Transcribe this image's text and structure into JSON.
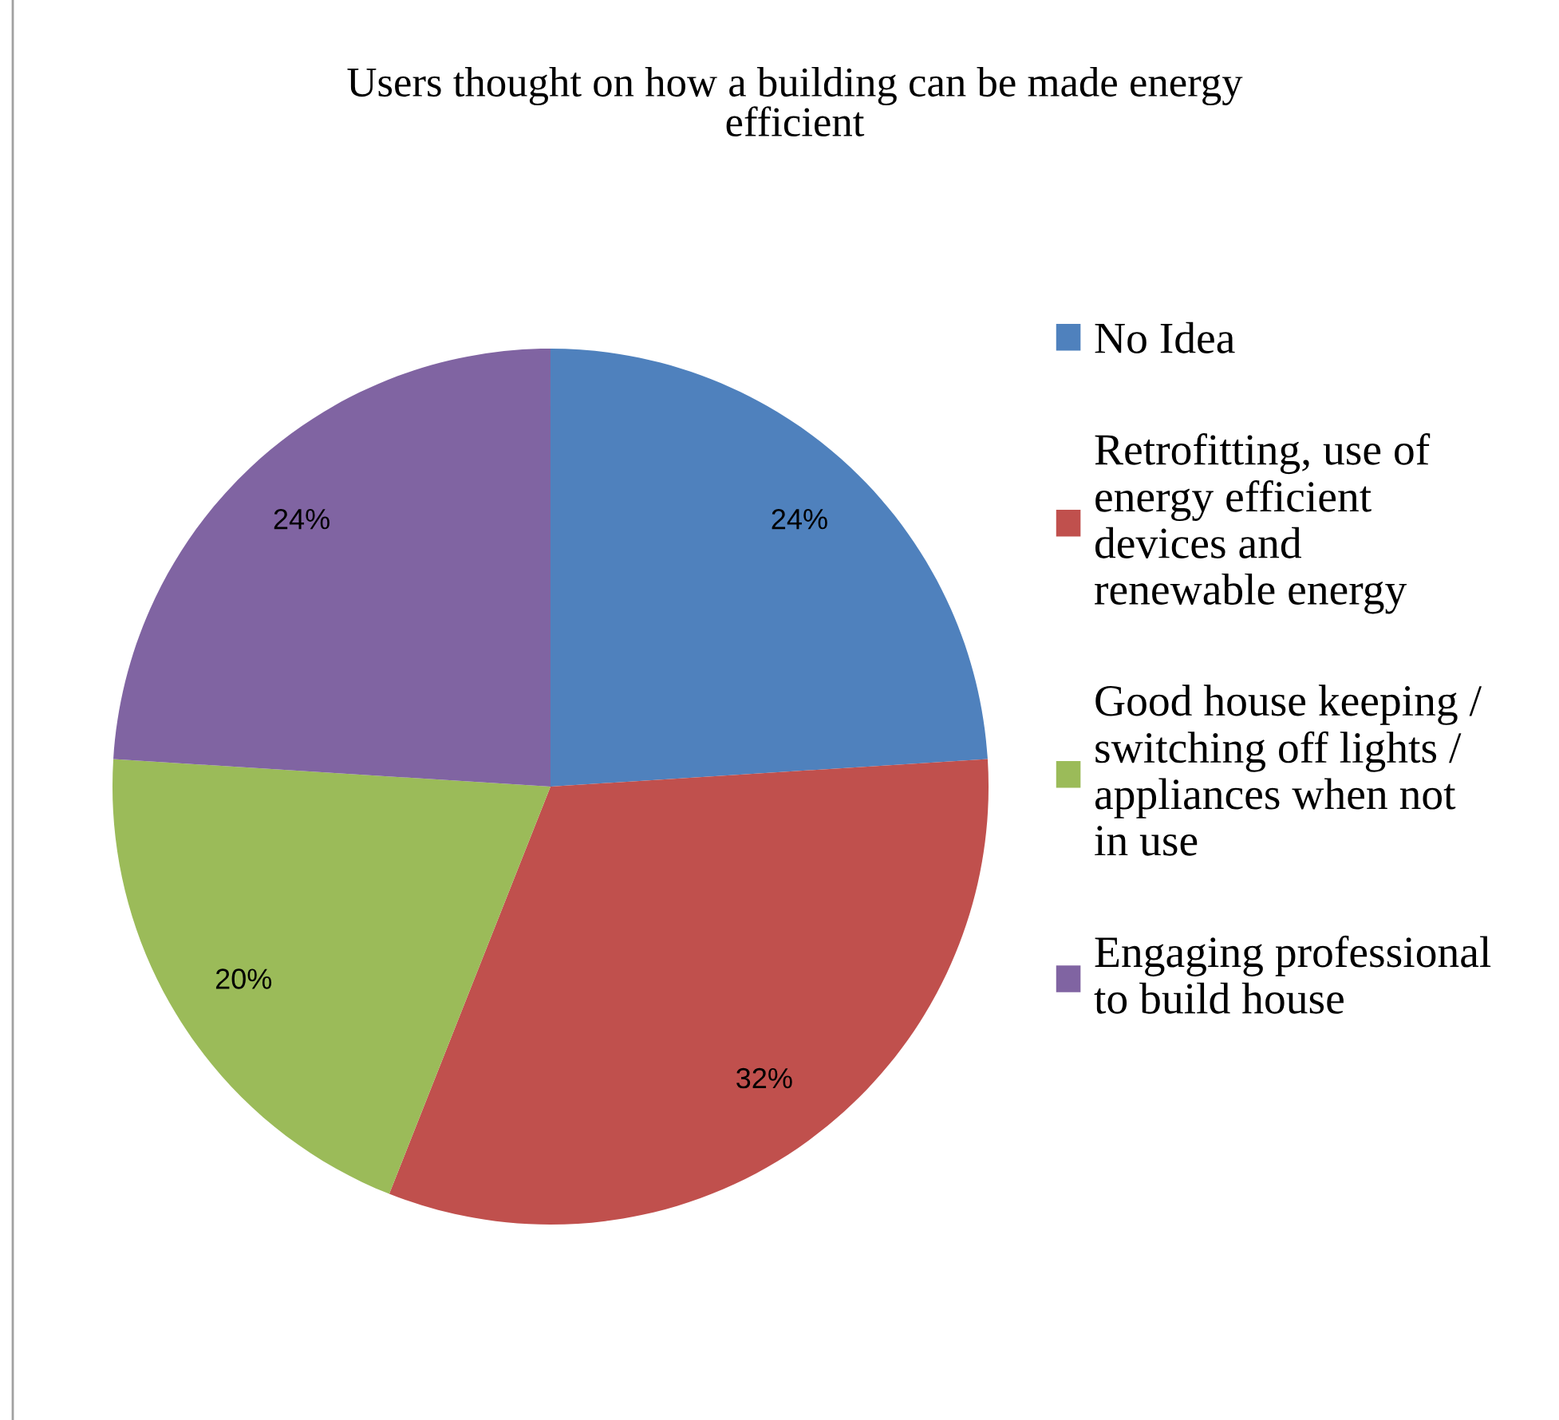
{
  "chart_data": {
    "type": "pie",
    "title": "Users thought on how a building can be made energy efficient",
    "categories": [
      "No Idea",
      "Retrofitting, use of energy efficient devices and renewable energy",
      "Good house keeping / switching off lights / appliances when not in use",
      "Engaging professional to build house"
    ],
    "values": [
      24,
      32,
      20,
      24
    ],
    "colors": [
      "#4f81bd",
      "#c0504d",
      "#9bbb59",
      "#8064a2"
    ],
    "value_labels": [
      "24%",
      "32%",
      "20%",
      "24%"
    ],
    "legend": "right"
  }
}
